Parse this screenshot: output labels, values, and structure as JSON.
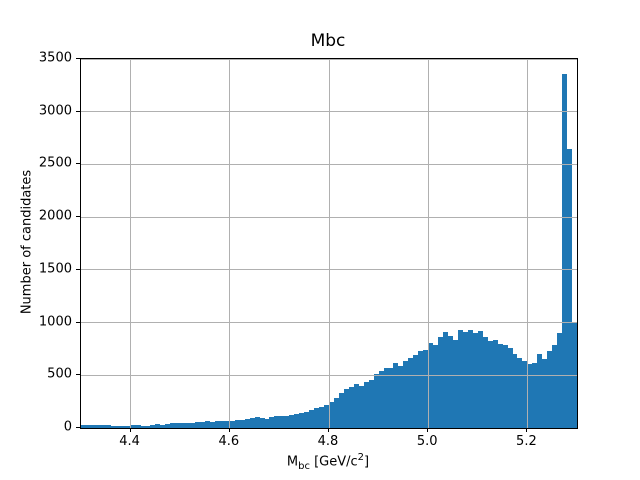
{
  "figure": {
    "title": "Mbc",
    "ylabel": "Number of candidates",
    "xlabel": {
      "base": "M",
      "sub": "bc",
      "unit_open": " [GeV/c",
      "sup": "2",
      "unit_close": "]"
    }
  },
  "chart_data": {
    "type": "bar",
    "subtype": "histogram",
    "title": "Mbc",
    "xlabel": "M_bc [GeV/c^2]",
    "ylabel": "Number of candidates",
    "xlim": [
      4.3,
      5.3
    ],
    "ylim": [
      0,
      3500
    ],
    "bin_start": 4.3,
    "bin_width": 0.01,
    "n_bins": 100,
    "grid": true,
    "legend": false,
    "bar_color": "#1f77b4",
    "grid_color": "#b0b0b0",
    "spine_color": "#000000",
    "xticks": [
      4.4,
      4.6,
      4.8,
      5.0,
      5.2
    ],
    "yticks": [
      0,
      500,
      1000,
      1500,
      2000,
      2500,
      3000,
      3500
    ],
    "values": [
      28,
      25,
      30,
      30,
      28,
      25,
      20,
      18,
      20,
      22,
      28,
      25,
      20,
      22,
      28,
      38,
      32,
      40,
      48,
      52,
      48,
      45,
      50,
      55,
      58,
      62,
      60,
      68,
      62,
      70,
      65,
      72,
      78,
      85,
      92,
      105,
      98,
      90,
      105,
      112,
      118,
      113,
      128,
      132,
      145,
      155,
      170,
      185,
      200,
      220,
      250,
      280,
      330,
      370,
      390,
      415,
      400,
      440,
      455,
      510,
      540,
      565,
      565,
      615,
      590,
      640,
      665,
      690,
      730,
      740,
      805,
      790,
      860,
      910,
      875,
      835,
      930,
      910,
      930,
      905,
      920,
      865,
      825,
      835,
      800,
      790,
      755,
      705,
      665,
      635,
      605,
      620,
      700,
      655,
      730,
      790,
      900,
      3360,
      2650,
      1010
    ]
  }
}
